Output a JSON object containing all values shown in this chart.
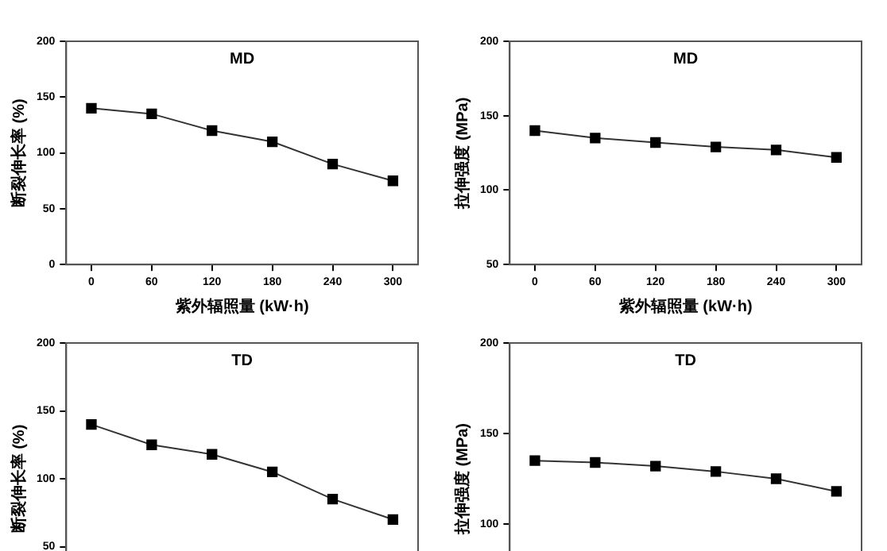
{
  "chart_data": [
    {
      "type": "line",
      "title": "MD",
      "xlabel": "紫外辐照量 (kW·h)",
      "ylabel": "断裂伸长率 (%)",
      "x": [
        0,
        60,
        120,
        180,
        240,
        300
      ],
      "xlim": [
        -25,
        325
      ],
      "xticks": [
        0,
        60,
        120,
        180,
        240,
        300
      ],
      "ylim": [
        0,
        200
      ],
      "yticks": [
        0,
        50,
        100,
        150,
        200
      ],
      "marker": "square",
      "grid": false,
      "legend": false,
      "series": [
        {
          "color": "#000000",
          "values": [
            140,
            135,
            120,
            110,
            90,
            75
          ]
        }
      ]
    },
    {
      "type": "line",
      "title": "MD",
      "xlabel": "紫外辐照量 (kW·h)",
      "ylabel": "拉伸强度 (MPa)",
      "x": [
        0,
        60,
        120,
        180,
        240,
        300
      ],
      "xlim": [
        -25,
        325
      ],
      "xticks": [
        0,
        60,
        120,
        180,
        240,
        300
      ],
      "ylim": [
        50,
        200
      ],
      "yticks": [
        50,
        100,
        150,
        200
      ],
      "marker": "square",
      "grid": false,
      "legend": false,
      "series": [
        {
          "color": "#000000",
          "values": [
            140,
            135,
            132,
            129,
            127,
            122
          ]
        }
      ]
    },
    {
      "type": "line",
      "title": "TD",
      "ylabel": "断裂伸长率 (%)",
      "x": [
        0,
        60,
        120,
        180,
        240,
        300
      ],
      "xlim": [
        -25,
        325
      ],
      "ylim": [
        0,
        200
      ],
      "yticks": [
        50,
        100,
        150,
        200
      ],
      "marker": "square",
      "grid": false,
      "legend": false,
      "tick_labels": "y",
      "series": [
        {
          "color": "#000000",
          "values": [
            140,
            125,
            118,
            105,
            85,
            70
          ]
        }
      ]
    },
    {
      "type": "line",
      "title": "TD",
      "ylabel": "拉伸强度 (MPa)",
      "x": [
        0,
        60,
        120,
        180,
        240,
        300
      ],
      "xlim": [
        -25,
        325
      ],
      "ylim": [
        50,
        200
      ],
      "yticks": [
        100,
        150,
        200
      ],
      "marker": "square",
      "grid": false,
      "legend": false,
      "tick_labels": "y",
      "series": [
        {
          "color": "#000000",
          "values": [
            135,
            134,
            132,
            129,
            125,
            118
          ]
        }
      ]
    }
  ]
}
